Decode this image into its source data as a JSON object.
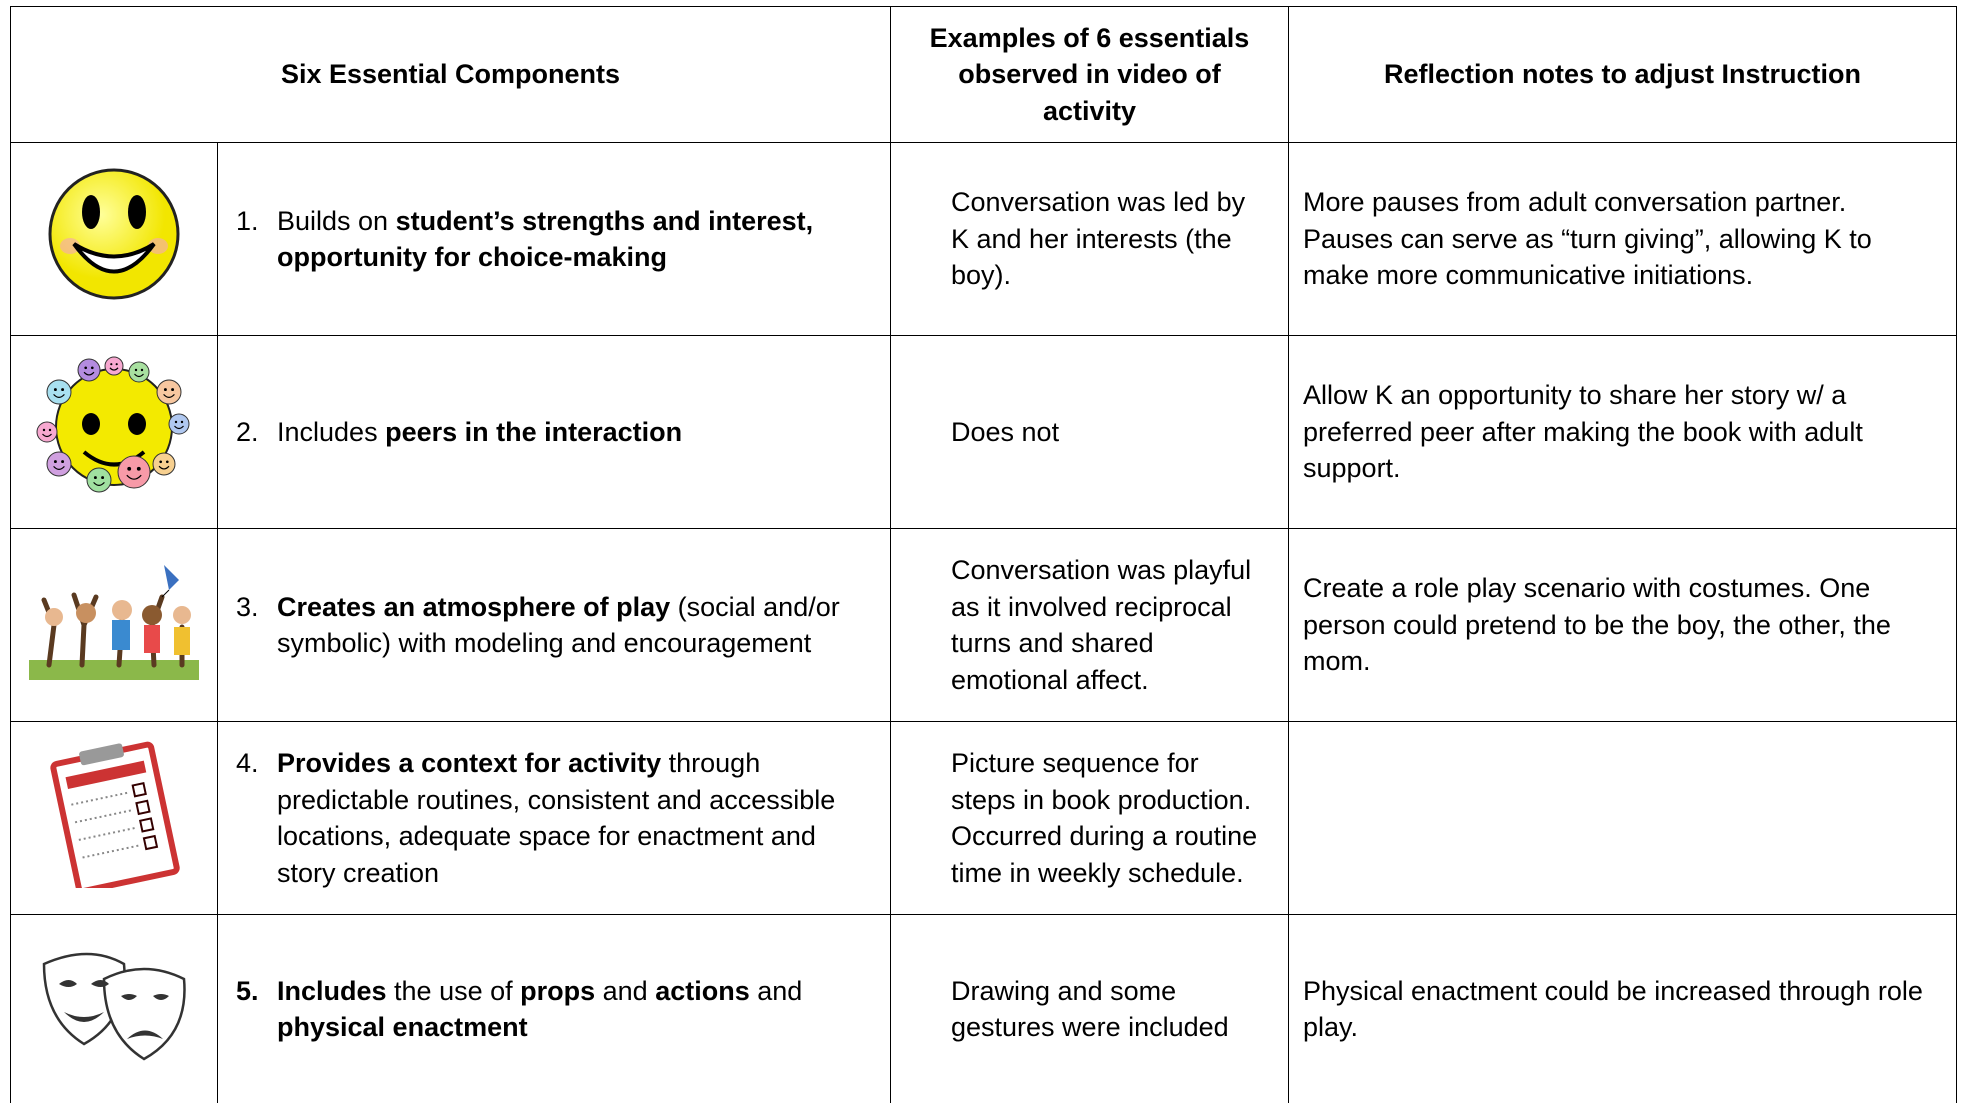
{
  "table": {
    "headers": [
      "Six Essential Components",
      "Examples of 6 essentials observed in video of activity",
      "Reflection notes to adjust Instruction"
    ],
    "rows": [
      {
        "number": "1.",
        "number_bold": false,
        "component": [
          {
            "text": "Builds on ",
            "bold": false
          },
          {
            "text": "student’s strengths and interest, opportunity for choice-making",
            "bold": true
          }
        ],
        "example": "Conversation was led by K and her interests (the boy).",
        "reflection": "More pauses from adult conversation partner. Pauses can serve as “turn giving”, allowing K to make more communicative initiations."
      },
      {
        "number": "2.",
        "number_bold": false,
        "component": [
          {
            "text": "Includes ",
            "bold": false
          },
          {
            "text": "peers in the interaction",
            "bold": true
          }
        ],
        "example": "Does not",
        "reflection": "Allow K an opportunity to share her story w/ a preferred peer after making the book with adult support."
      },
      {
        "number": "3.",
        "number_bold": false,
        "component": [
          {
            "text": "Creates an atmosphere of play",
            "bold": true
          },
          {
            "text": " (social and/or symbolic) with modeling and encouragement",
            "bold": false
          }
        ],
        "example": "Conversation was playful as it involved reciprocal turns and shared emotional affect.",
        "reflection": "Create a role play scenario with costumes. One person could pretend to be the boy, the other, the mom."
      },
      {
        "number": "4.",
        "number_bold": false,
        "component": [
          {
            "text": "Provides a context for activity",
            "bold": true
          },
          {
            "text": " through predictable routines, consistent and accessible locations, adequate space for enactment and story creation",
            "bold": false
          }
        ],
        "example": "Picture sequence for steps in book production. Occurred during a routine time in weekly schedule."
      },
      {
        "number": "5.",
        "number_bold": true,
        "component": [
          {
            "text": "Includes",
            "bold": true
          },
          {
            "text": " the use of ",
            "bold": false
          },
          {
            "text": "props",
            "bold": true
          },
          {
            "text": " and ",
            "bold": false
          },
          {
            "text": "actions",
            "bold": true
          },
          {
            "text": " and ",
            "bold": false
          },
          {
            "text": "physical enactment",
            "bold": true
          }
        ],
        "example": "Drawing and some gestures were included",
        "reflection": "Physical enactment could be increased through role play."
      }
    ]
  }
}
